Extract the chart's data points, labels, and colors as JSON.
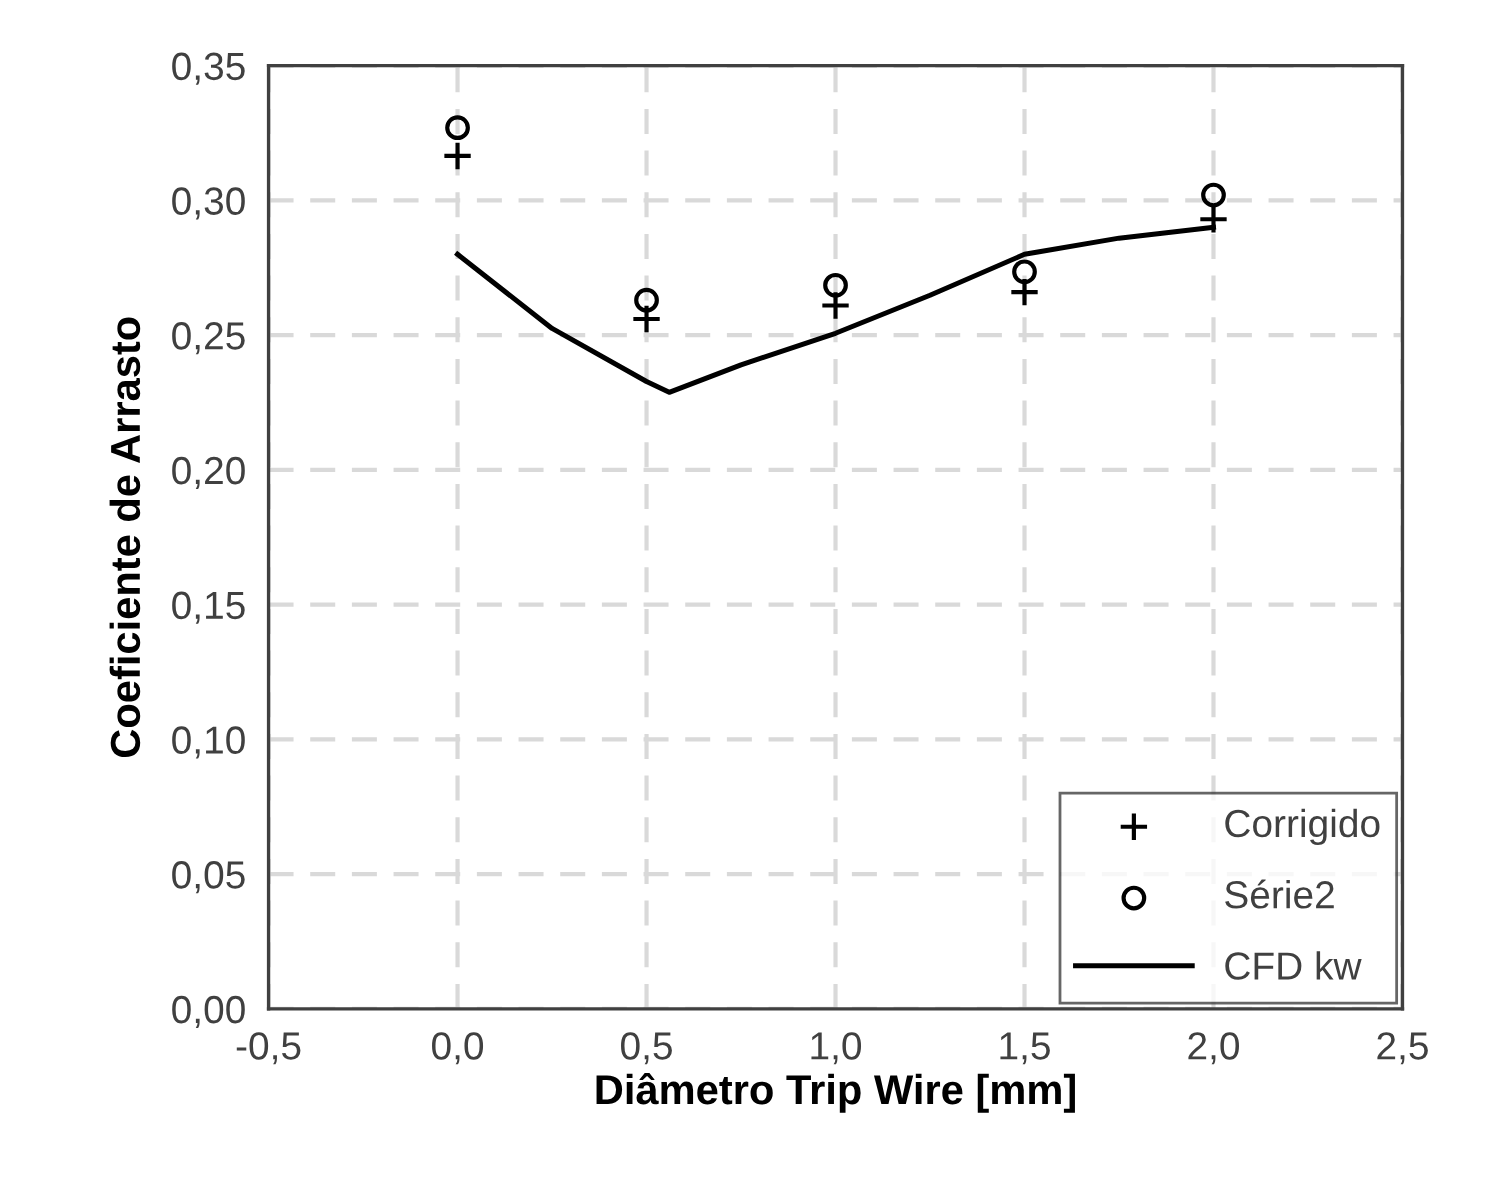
{
  "chart_data": {
    "type": "scatter",
    "xlabel": "Diâmetro Trip Wire [mm]",
    "ylabel": "Coeficiente de Arrasto",
    "series": [
      {
        "name": "Corrigido",
        "marker": "cross",
        "color": "#000000",
        "x": [
          0.0,
          0.5,
          1.0,
          1.5,
          2.0
        ],
        "values": [
          0.3165,
          0.256,
          0.261,
          0.266,
          0.293
        ]
      },
      {
        "name": "Série2",
        "marker": "circle",
        "color": "#000000",
        "x": [
          0.0,
          0.5,
          1.0,
          1.5,
          2.0
        ],
        "values": [
          0.327,
          0.263,
          0.2685,
          0.2735,
          0.302
        ]
      },
      {
        "name": "CFD kw",
        "type": "line",
        "marker": "none",
        "line_style": "solid",
        "color": "#000000",
        "x": [
          0.0,
          0.25,
          0.5,
          0.56,
          0.75,
          1.0,
          1.25,
          1.5,
          1.75,
          2.0
        ],
        "values": [
          0.28,
          0.2525,
          0.2328,
          0.2288,
          0.239,
          0.2507,
          0.2648,
          0.28,
          0.286,
          0.29
        ]
      }
    ],
    "xlim": [
      -0.5,
      2.5
    ],
    "xticks": [
      {
        "value": -0.5,
        "label": "-0,5"
      },
      {
        "value": 0.0,
        "label": "0,0"
      },
      {
        "value": 0.5,
        "label": "0,5"
      },
      {
        "value": 1.0,
        "label": "1,0"
      },
      {
        "value": 1.5,
        "label": "1,5"
      },
      {
        "value": 2.0,
        "label": "2,0"
      },
      {
        "value": 2.5,
        "label": "2,5"
      }
    ],
    "ylim": [
      0.0,
      0.35
    ],
    "yticks": [
      {
        "value": 0.0,
        "label": "0,00"
      },
      {
        "value": 0.05,
        "label": "0,05"
      },
      {
        "value": 0.1,
        "label": "0,10"
      },
      {
        "value": 0.15,
        "label": "0,15"
      },
      {
        "value": 0.2,
        "label": "0,20"
      },
      {
        "value": 0.25,
        "label": "0,25"
      },
      {
        "value": 0.3,
        "label": "0,30"
      },
      {
        "value": 0.35,
        "label": "0,35"
      }
    ],
    "grid": true,
    "legend": "bottom right"
  }
}
